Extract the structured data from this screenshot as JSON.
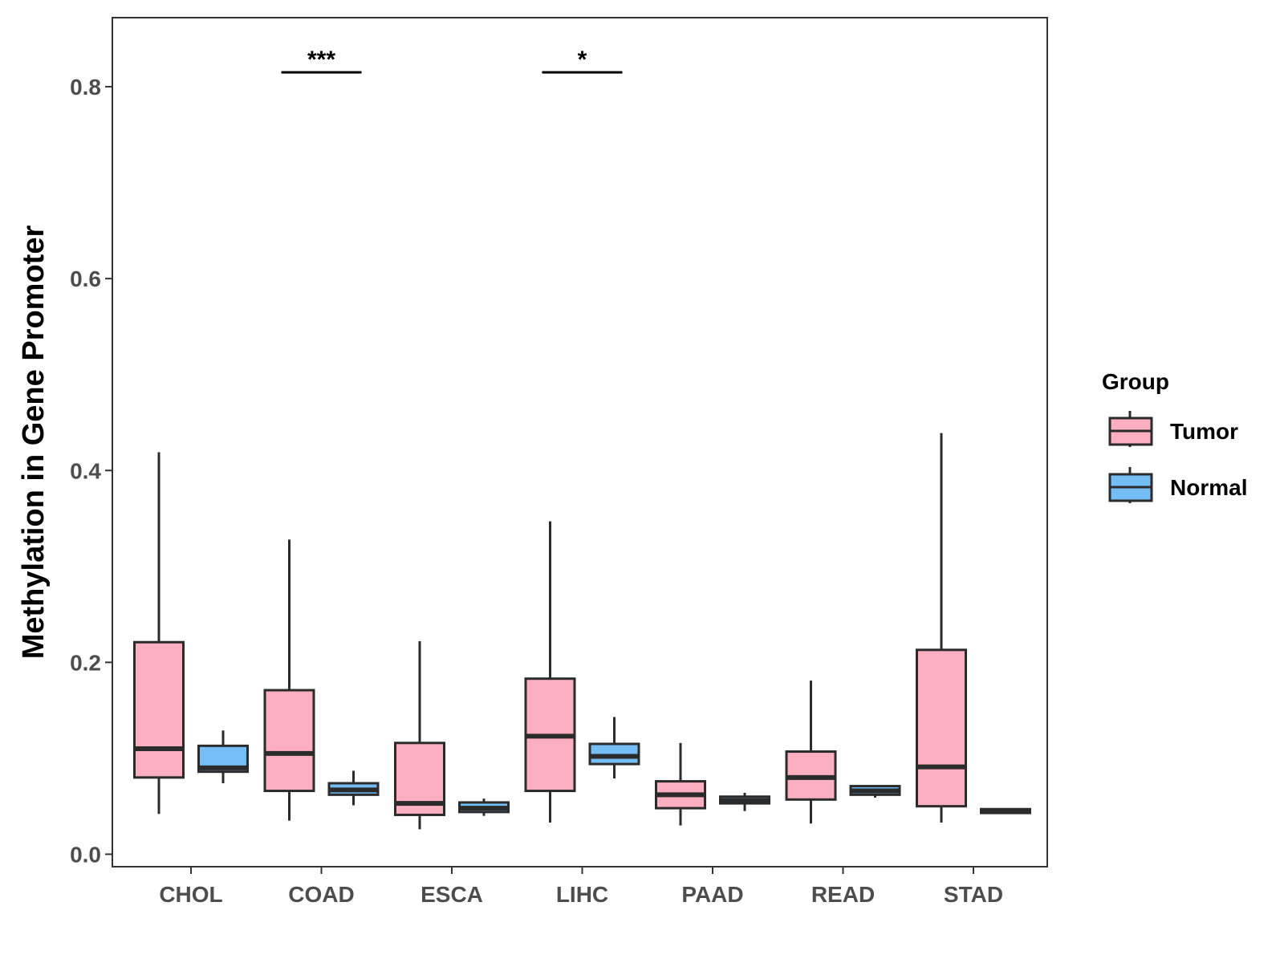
{
  "chart_data": {
    "type": "boxplot",
    "title": "",
    "xlabel": "",
    "ylabel": "Methylation in Gene Promoter",
    "ylim": [
      -0.013,
      0.872
    ],
    "yticks": [
      "0.0",
      "0.2",
      "0.4",
      "0.6",
      "0.8"
    ],
    "categories": [
      "CHOL",
      "COAD",
      "ESCA",
      "LIHC",
      "PAAD",
      "READ",
      "STAD"
    ],
    "legend": {
      "title": "Group",
      "placement": "right",
      "entries": [
        {
          "name": "Tumor",
          "color": "#fbafc0"
        },
        {
          "name": "Normal",
          "color": "#74bdf5"
        }
      ]
    },
    "series": [
      {
        "name": "Tumor",
        "color": "#fbafc0",
        "boxes": [
          {
            "category": "CHOL",
            "min": 0.042,
            "q1": 0.08,
            "median": 0.11,
            "q3": 0.221,
            "max": 0.419
          },
          {
            "category": "COAD",
            "min": 0.035,
            "q1": 0.066,
            "median": 0.105,
            "q3": 0.171,
            "max": 0.328
          },
          {
            "category": "ESCA",
            "min": 0.026,
            "q1": 0.041,
            "median": 0.053,
            "q3": 0.116,
            "max": 0.222
          },
          {
            "category": "LIHC",
            "min": 0.033,
            "q1": 0.066,
            "median": 0.123,
            "q3": 0.183,
            "max": 0.347
          },
          {
            "category": "PAAD",
            "min": 0.03,
            "q1": 0.048,
            "median": 0.062,
            "q3": 0.076,
            "max": 0.116
          },
          {
            "category": "READ",
            "min": 0.032,
            "q1": 0.057,
            "median": 0.08,
            "q3": 0.107,
            "max": 0.181
          },
          {
            "category": "STAD",
            "min": 0.033,
            "q1": 0.05,
            "median": 0.091,
            "q3": 0.213,
            "max": 0.439
          }
        ]
      },
      {
        "name": "Normal",
        "color": "#74bdf5",
        "boxes": [
          {
            "category": "CHOL",
            "min": 0.074,
            "q1": 0.086,
            "median": 0.09,
            "q3": 0.113,
            "max": 0.129
          },
          {
            "category": "COAD",
            "min": 0.051,
            "q1": 0.062,
            "median": 0.067,
            "q3": 0.074,
            "max": 0.087
          },
          {
            "category": "ESCA",
            "min": 0.04,
            "q1": 0.044,
            "median": 0.048,
            "q3": 0.054,
            "max": 0.058
          },
          {
            "category": "LIHC",
            "min": 0.079,
            "q1": 0.094,
            "median": 0.102,
            "q3": 0.115,
            "max": 0.143
          },
          {
            "category": "PAAD",
            "min": 0.045,
            "q1": 0.053,
            "median": 0.056,
            "q3": 0.06,
            "max": 0.064
          },
          {
            "category": "READ",
            "min": 0.059,
            "q1": 0.062,
            "median": 0.066,
            "q3": 0.071,
            "max": 0.072
          },
          {
            "category": "STAD",
            "min": 0.042,
            "q1": 0.043,
            "median": 0.045,
            "q3": 0.047,
            "max": 0.048
          }
        ]
      }
    ],
    "annotations": [
      {
        "category": "COAD",
        "label": "***",
        "y": 0.815
      },
      {
        "category": "LIHC",
        "label": "*",
        "y": 0.815
      }
    ]
  }
}
